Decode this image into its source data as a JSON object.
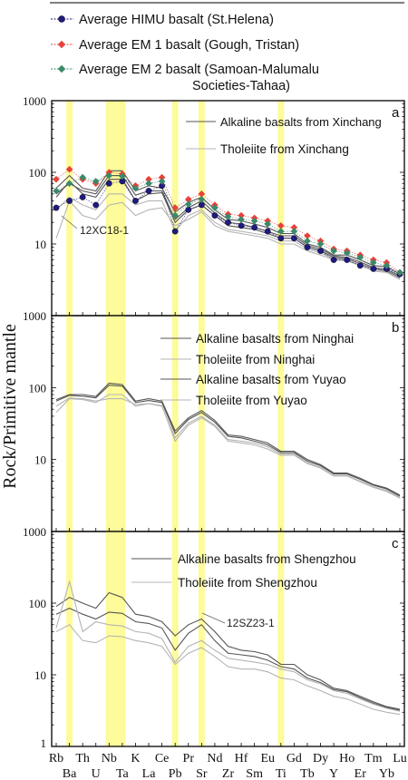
{
  "ylabel": "Rock/Primitive mantle",
  "elements": [
    "Rb",
    "Ba",
    "Th",
    "U",
    "Nb",
    "Ta",
    "K",
    "La",
    "Ce",
    "Pb",
    "Pr",
    "Sr",
    "Nd",
    "Zr",
    "Hf",
    "Sm",
    "Eu",
    "Ti",
    "Gd",
    "Tb",
    "Dy",
    "Y",
    "Ho",
    "Er",
    "Tm",
    "Yb",
    "Lu"
  ],
  "highlight_bands": [
    [
      "Ba",
      "Ba"
    ],
    [
      "Nb",
      "Ta"
    ],
    [
      "Pb",
      "Pb"
    ],
    [
      "Sr",
      "Sr"
    ],
    [
      "Ti",
      "Ti"
    ]
  ],
  "colors": {
    "highlight": "#fdfb9a",
    "himu": "#1f1a80",
    "em1": "#e8413a",
    "em2": "#3a8a6a",
    "alkaline": "#555555",
    "tholeiite": "#b4b4b4"
  },
  "legend": [
    {
      "label": "Average HIMU basalt (St.Helena)",
      "color": "#1f1a80",
      "marker": "circle"
    },
    {
      "label": "Average EM 1 basalt (Gough, Tristan)",
      "color": "#e8413a",
      "marker": "diamond"
    },
    {
      "label": "Average EM 2 basalt (Samoan-Malumalu",
      "label2": "Societies-Tahaa)",
      "color": "#3a8a6a",
      "marker": "diamond"
    }
  ],
  "chart_data": [
    {
      "type": "line",
      "panel_label": "a",
      "ylim": [
        1,
        1000
      ],
      "log_y": true,
      "tick_labels": [
        "1000",
        "100",
        "10"
      ],
      "legend_entries": [
        "Alkaline basalts from Xinchang",
        "Tholeiite from Xinchang"
      ],
      "annotation": "12XC18-1",
      "reference_series": [
        {
          "name": "Average HIMU basalt (St.Helena)",
          "key": "himu",
          "marker": "circle",
          "values": [
            32,
            40,
            45,
            35,
            70,
            75,
            40,
            55,
            65,
            15,
            30,
            35,
            25,
            20,
            18,
            17,
            15,
            12,
            12,
            9,
            8,
            6,
            6,
            5,
            4.5,
            4.5,
            3.8
          ]
        },
        {
          "name": "Average EM 1 basalt (Gough, Tristan)",
          "key": "em1",
          "marker": "diamond",
          "values": [
            80,
            110,
            80,
            70,
            100,
            95,
            65,
            80,
            85,
            32,
            42,
            50,
            35,
            26,
            25,
            23,
            21,
            18,
            17,
            13,
            11,
            8.5,
            8,
            7,
            6,
            5.5,
            4
          ]
        },
        {
          "name": "Average EM 2 basalt (Samoan-Malumalu Societies-Tahaa)",
          "key": "em2",
          "marker": "diamond",
          "values": [
            55,
            70,
            85,
            75,
            90,
            88,
            60,
            70,
            75,
            25,
            36,
            42,
            32,
            24,
            22,
            21,
            19,
            15,
            15,
            11,
            10,
            8,
            7.5,
            6.5,
            5.5,
            5,
            4
          ]
        }
      ],
      "sample_series": [
        {
          "group": "alkaline",
          "values": [
            60,
            90,
            60,
            55,
            105,
            105,
            55,
            65,
            60,
            28,
            38,
            45,
            30,
            22,
            21,
            19,
            17,
            14,
            14,
            10,
            9,
            7,
            7,
            6,
            5,
            4.8,
            3.8
          ]
        },
        {
          "group": "alkaline",
          "values": [
            50,
            70,
            55,
            50,
            90,
            90,
            48,
            55,
            55,
            22,
            32,
            40,
            27,
            20,
            19,
            17,
            15,
            13,
            13,
            9.5,
            8.5,
            6.8,
            6.5,
            5.6,
            4.7,
            4.4,
            3.6
          ]
        },
        {
          "group": "alkaline",
          "values": [
            45,
            75,
            50,
            45,
            80,
            80,
            40,
            50,
            52,
            20,
            30,
            35,
            25,
            18,
            17,
            16,
            14,
            12,
            12,
            9,
            8,
            6.5,
            6.2,
            5.3,
            4.5,
            4.2,
            3.4
          ]
        },
        {
          "group": "tholeiite",
          "values": [
            12,
            40,
            25,
            22,
            35,
            38,
            25,
            30,
            32,
            18,
            22,
            28,
            18,
            15,
            14,
            13,
            12,
            10,
            10,
            8,
            7,
            6,
            5.8,
            5,
            4.2,
            4,
            3.2
          ]
        },
        {
          "group": "tholeiite",
          "values": [
            30,
            45,
            35,
            30,
            50,
            50,
            35,
            40,
            40,
            15,
            25,
            30,
            20,
            16,
            15,
            14,
            13,
            11,
            11,
            8.5,
            7.5,
            6.2,
            6,
            5.2,
            4.4,
            4.1,
            3.3
          ]
        }
      ]
    },
    {
      "type": "line",
      "panel_label": "b",
      "ylim": [
        1,
        1000
      ],
      "log_y": true,
      "tick_labels": [
        "1000",
        "100",
        "10"
      ],
      "legend_entries": [
        "Alkaline basalts from Ninghai",
        "Tholeiite from Ninghai",
        "Alkaline basalts from Yuyao",
        "Tholeiite from Yuyao"
      ],
      "sample_series": [
        {
          "group": "alkaline",
          "values": [
            68,
            80,
            80,
            75,
            115,
            110,
            65,
            70,
            65,
            25,
            38,
            48,
            35,
            22,
            21,
            19,
            17,
            13,
            13,
            10,
            8.5,
            6.5,
            6.5,
            5.5,
            4.5,
            4,
            3.2
          ]
        },
        {
          "group": "alkaline",
          "values": [
            65,
            78,
            76,
            72,
            108,
            105,
            62,
            66,
            62,
            23,
            36,
            45,
            33,
            21,
            20,
            18,
            16,
            12.5,
            12.5,
            9.5,
            8.2,
            6.3,
            6.3,
            5.3,
            4.4,
            3.9,
            3.1
          ]
        },
        {
          "group": "tholeiite",
          "values": [
            45,
            70,
            68,
            62,
            80,
            80,
            55,
            60,
            55,
            20,
            32,
            40,
            30,
            19,
            18,
            17,
            15,
            12,
            12,
            9,
            7.8,
            6,
            6,
            5,
            4.2,
            3.7,
            3
          ]
        },
        {
          "group": "tholeiite",
          "values": [
            55,
            72,
            70,
            65,
            70,
            70,
            58,
            60,
            56,
            18,
            30,
            38,
            29,
            18,
            17,
            16,
            14,
            11.5,
            11.5,
            8.8,
            7.6,
            5.9,
            5.9,
            4.9,
            4.1,
            3.6,
            2.9
          ]
        }
      ]
    },
    {
      "type": "line",
      "panel_label": "c",
      "ylim": [
        1,
        1000
      ],
      "log_y": true,
      "tick_labels": [
        "1000",
        "100",
        "10",
        "1"
      ],
      "legend_entries": [
        "Alkaline basalts from Shengzhou",
        "Tholeiite from Shengzhou"
      ],
      "annotation": "12SZ23-1",
      "sample_series": [
        {
          "group": "alkaline",
          "values": [
            90,
            120,
            100,
            85,
            140,
            120,
            70,
            65,
            55,
            35,
            50,
            60,
            40,
            25,
            22,
            21,
            19,
            14,
            14,
            10,
            8.5,
            6.5,
            6,
            5,
            4.2,
            3.6,
            3.3
          ]
        },
        {
          "group": "alkaline",
          "values": [
            70,
            85,
            70,
            60,
            75,
            72,
            55,
            52,
            45,
            22,
            38,
            50,
            30,
            20,
            19,
            18,
            16,
            13,
            12,
            9,
            7.8,
            6.2,
            5.8,
            4.8,
            4,
            3.5,
            3.2
          ]
        },
        {
          "group": "tholeiite",
          "values": [
            45,
            200,
            40,
            55,
            50,
            48,
            40,
            38,
            32,
            15,
            25,
            30,
            22,
            17,
            16,
            15,
            14,
            12,
            11,
            8.5,
            7.5,
            6,
            5.5,
            4.6,
            3.9,
            3.4,
            3.1
          ]
        },
        {
          "group": "tholeiite",
          "values": [
            40,
            50,
            30,
            28,
            35,
            34,
            30,
            28,
            25,
            14,
            20,
            24,
            18,
            13,
            12,
            12,
            11,
            9,
            8.5,
            7,
            6,
            5,
            4.6,
            3.9,
            3.3,
            3,
            2.8
          ]
        }
      ]
    }
  ]
}
